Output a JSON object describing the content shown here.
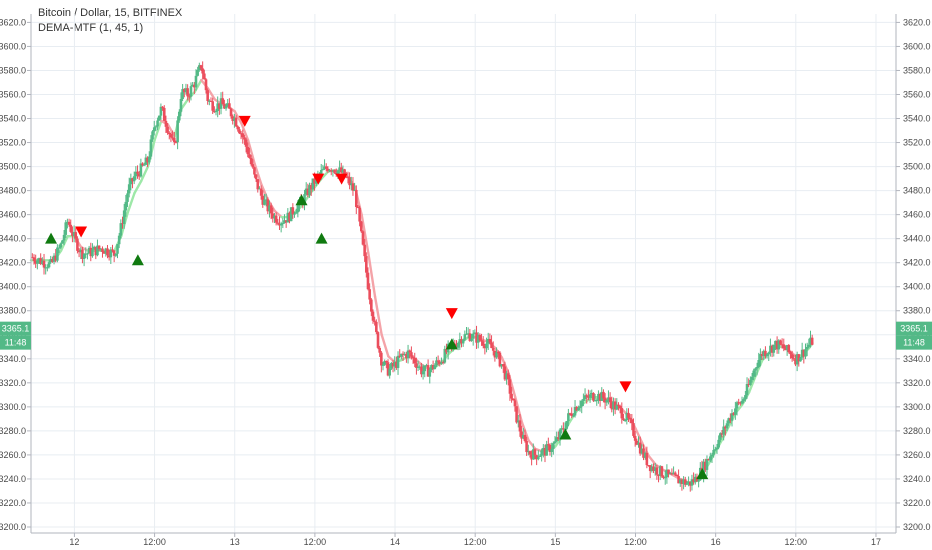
{
  "chart_data": {
    "type": "candlestick",
    "title": "Bitcoin / Dollar, 15, BITFINEX",
    "indicator": "DEMA-MTF (1, 45, 1)",
    "xlabel": "",
    "ylabel": "",
    "ylim": [
      3195,
      3627
    ],
    "y_ticks": [
      "3200.0",
      "3220.0",
      "3240.0",
      "3260.0",
      "3280.0",
      "3300.0",
      "3320.0",
      "3340.0",
      "3360.0",
      "3380.0",
      "3400.0",
      "3420.0",
      "3440.0",
      "3460.0",
      "3480.0",
      "3500.0",
      "3520.0",
      "3540.0",
      "3560.0",
      "3580.0",
      "3600.0",
      "3620.0"
    ],
    "x_ticks": [
      {
        "label": "12",
        "t": 2
      },
      {
        "label": "12:00",
        "t": 14
      },
      {
        "label": "13",
        "t": 26
      },
      {
        "label": "12:00",
        "t": 38
      },
      {
        "label": "14",
        "t": 50
      },
      {
        "label": "12:00",
        "t": 62
      },
      {
        "label": "15",
        "t": 74
      },
      {
        "label": "12:00",
        "t": 86
      },
      {
        "label": "16",
        "t": 98
      },
      {
        "label": "12:00",
        "t": 110
      },
      {
        "label": "17",
        "t": 122
      }
    ],
    "xlim": [
      -4.5,
      125
    ],
    "grid": true,
    "last_price": "3365.1",
    "last_value": 3365.1,
    "countdown": "11:48",
    "price_line": [
      [
        -4.5,
        3425
      ],
      [
        -1.5,
        3418
      ],
      [
        0,
        3435
      ],
      [
        1,
        3455
      ],
      [
        2,
        3440
      ],
      [
        3,
        3428
      ],
      [
        4,
        3428
      ],
      [
        5,
        3430
      ],
      [
        6,
        3432
      ],
      [
        7,
        3430
      ],
      [
        8,
        3427
      ],
      [
        9,
        3450
      ],
      [
        10,
        3480
      ],
      [
        11,
        3492
      ],
      [
        12,
        3498
      ],
      [
        13,
        3505
      ],
      [
        14,
        3535
      ],
      [
        15,
        3548
      ],
      [
        16,
        3532
      ],
      [
        17,
        3515
      ],
      [
        18,
        3562
      ],
      [
        19,
        3560
      ],
      [
        20,
        3570
      ],
      [
        21,
        3585
      ],
      [
        22,
        3555
      ],
      [
        23,
        3550
      ],
      [
        24,
        3552
      ],
      [
        25,
        3548
      ],
      [
        26,
        3540
      ],
      [
        27,
        3528
      ],
      [
        28,
        3512
      ],
      [
        29,
        3490
      ],
      [
        30,
        3475
      ],
      [
        31,
        3465
      ],
      [
        32,
        3458
      ],
      [
        33,
        3455
      ],
      [
        34,
        3458
      ],
      [
        35,
        3465
      ],
      [
        36,
        3470
      ],
      [
        37,
        3480
      ],
      [
        38,
        3488
      ],
      [
        39,
        3495
      ],
      [
        40,
        3500
      ],
      [
        41,
        3498
      ],
      [
        42,
        3495
      ],
      [
        43,
        3488
      ],
      [
        44,
        3478
      ],
      [
        45,
        3440
      ],
      [
        46,
        3400
      ],
      [
        47,
        3365
      ],
      [
        48,
        3338
      ],
      [
        49,
        3330
      ],
      [
        50,
        3335
      ],
      [
        51,
        3342
      ],
      [
        52,
        3345
      ],
      [
        53,
        3338
      ],
      [
        54,
        3330
      ],
      [
        55,
        3330
      ],
      [
        56,
        3335
      ],
      [
        57,
        3340
      ],
      [
        58,
        3348
      ],
      [
        59,
        3352
      ],
      [
        60,
        3358
      ],
      [
        61,
        3360
      ],
      [
        62,
        3358
      ],
      [
        63,
        3355
      ],
      [
        64,
        3352
      ],
      [
        65,
        3345
      ],
      [
        66,
        3335
      ],
      [
        67,
        3318
      ],
      [
        68,
        3295
      ],
      [
        69,
        3275
      ],
      [
        70,
        3262
      ],
      [
        71,
        3260
      ],
      [
        72,
        3262
      ],
      [
        73,
        3265
      ],
      [
        74,
        3270
      ],
      [
        75,
        3280
      ],
      [
        76,
        3292
      ],
      [
        77,
        3300
      ],
      [
        78,
        3305
      ],
      [
        79,
        3308
      ],
      [
        80,
        3310
      ],
      [
        81,
        3308
      ],
      [
        82,
        3305
      ],
      [
        83,
        3300
      ],
      [
        84,
        3295
      ],
      [
        85,
        3288
      ],
      [
        86,
        3275
      ],
      [
        87,
        3262
      ],
      [
        88,
        3252
      ],
      [
        89,
        3248
      ],
      [
        90,
        3245
      ],
      [
        91,
        3242
      ],
      [
        92,
        3240
      ],
      [
        93,
        3238
      ],
      [
        94,
        3236
      ],
      [
        95,
        3240
      ],
      [
        96,
        3248
      ],
      [
        97,
        3258
      ],
      [
        98,
        3268
      ],
      [
        99,
        3278
      ],
      [
        100,
        3290
      ],
      [
        101,
        3300
      ],
      [
        102,
        3305
      ],
      [
        103,
        3318
      ],
      [
        104,
        3335
      ],
      [
        105,
        3345
      ],
      [
        106,
        3348
      ],
      [
        107,
        3352
      ],
      [
        108,
        3350
      ],
      [
        109,
        3345
      ],
      [
        110,
        3340
      ],
      [
        111,
        3345
      ],
      [
        112,
        3352
      ],
      [
        112.5,
        3355
      ]
    ],
    "series": [
      {
        "name": "DEMA-MTF",
        "values": [
          [
            -4.5,
            3422
          ],
          [
            -1,
            3422
          ],
          [
            0,
            3430
          ],
          [
            1,
            3442
          ],
          [
            2,
            3442
          ],
          [
            3,
            3433
          ],
          [
            4,
            3430
          ],
          [
            5,
            3430
          ],
          [
            6,
            3430
          ],
          [
            7,
            3430
          ],
          [
            8,
            3430
          ],
          [
            9,
            3442
          ],
          [
            10,
            3462
          ],
          [
            11,
            3478
          ],
          [
            12,
            3488
          ],
          [
            13,
            3500
          ],
          [
            14,
            3522
          ],
          [
            15,
            3538
          ],
          [
            16,
            3535
          ],
          [
            17,
            3525
          ],
          [
            18,
            3548
          ],
          [
            19,
            3556
          ],
          [
            20,
            3562
          ],
          [
            21,
            3572
          ],
          [
            22,
            3565
          ],
          [
            23,
            3556
          ],
          [
            24,
            3552
          ],
          [
            25,
            3550
          ],
          [
            26,
            3546
          ],
          [
            27,
            3536
          ],
          [
            28,
            3522
          ],
          [
            29,
            3502
          ],
          [
            30,
            3485
          ],
          [
            31,
            3472
          ],
          [
            32,
            3463
          ],
          [
            33,
            3458
          ],
          [
            34,
            3458
          ],
          [
            35,
            3462
          ],
          [
            36,
            3467
          ],
          [
            37,
            3475
          ],
          [
            38,
            3483
          ],
          [
            39,
            3490
          ],
          [
            40,
            3496
          ],
          [
            41,
            3497
          ],
          [
            42,
            3496
          ],
          [
            43,
            3491
          ],
          [
            44,
            3483
          ],
          [
            45,
            3460
          ],
          [
            46,
            3428
          ],
          [
            47,
            3392
          ],
          [
            48,
            3360
          ],
          [
            49,
            3342
          ],
          [
            50,
            3337
          ],
          [
            51,
            3339
          ],
          [
            52,
            3342
          ],
          [
            53,
            3340
          ],
          [
            54,
            3335
          ],
          [
            55,
            3332
          ],
          [
            56,
            3333
          ],
          [
            57,
            3337
          ],
          [
            58,
            3344
          ],
          [
            59,
            3349
          ],
          [
            60,
            3354
          ],
          [
            61,
            3358
          ],
          [
            62,
            3358
          ],
          [
            63,
            3356
          ],
          [
            64,
            3354
          ],
          [
            65,
            3349
          ],
          [
            66,
            3341
          ],
          [
            67,
            3328
          ],
          [
            68,
            3308
          ],
          [
            69,
            3287
          ],
          [
            70,
            3272
          ],
          [
            71,
            3265
          ],
          [
            72,
            3263
          ],
          [
            73,
            3264
          ],
          [
            74,
            3267
          ],
          [
            75,
            3275
          ],
          [
            76,
            3286
          ],
          [
            77,
            3295
          ],
          [
            78,
            3302
          ],
          [
            79,
            3306
          ],
          [
            80,
            3308
          ],
          [
            81,
            3308
          ],
          [
            82,
            3306
          ],
          [
            83,
            3302
          ],
          [
            84,
            3298
          ],
          [
            85,
            3292
          ],
          [
            86,
            3282
          ],
          [
            87,
            3270
          ],
          [
            88,
            3259
          ],
          [
            89,
            3252
          ],
          [
            90,
            3248
          ],
          [
            91,
            3245
          ],
          [
            92,
            3242
          ],
          [
            93,
            3239
          ],
          [
            94,
            3237
          ],
          [
            95,
            3238
          ],
          [
            96,
            3244
          ],
          [
            97,
            3253
          ],
          [
            98,
            3263
          ],
          [
            99,
            3273
          ],
          [
            100,
            3284
          ],
          [
            101,
            3295
          ],
          [
            102,
            3302
          ],
          [
            103,
            3312
          ],
          [
            104,
            3326
          ],
          [
            105,
            3339
          ],
          [
            106,
            3345
          ],
          [
            107,
            3350
          ],
          [
            108,
            3350
          ],
          [
            109,
            3347
          ],
          [
            110,
            3342
          ],
          [
            111,
            3343
          ],
          [
            112,
            3349
          ],
          [
            112.5,
            3353
          ]
        ]
      }
    ],
    "signals": [
      {
        "t": -1.5,
        "y": 3440,
        "type": "up"
      },
      {
        "t": 3,
        "y": 3446,
        "type": "down"
      },
      {
        "t": 11.5,
        "y": 3422,
        "type": "up"
      },
      {
        "t": 27.5,
        "y": 3538,
        "type": "down"
      },
      {
        "t": 36,
        "y": 3472,
        "type": "up"
      },
      {
        "t": 38.5,
        "y": 3490,
        "type": "down"
      },
      {
        "t": 39,
        "y": 3440,
        "type": "up"
      },
      {
        "t": 42,
        "y": 3490,
        "type": "down"
      },
      {
        "t": 58.5,
        "y": 3352,
        "type": "up"
      },
      {
        "t": 58.5,
        "y": 3378,
        "type": "down"
      },
      {
        "t": 75.5,
        "y": 3277,
        "type": "up"
      },
      {
        "t": 84.5,
        "y": 3317,
        "type": "down"
      },
      {
        "t": 96,
        "y": 3244,
        "type": "up"
      }
    ]
  },
  "colors": {
    "bull": "#53b987",
    "bear": "#eb4d5c",
    "dema_up": "#9de8a8",
    "dema_down": "#f4a3a8",
    "grid": "#e8edf2",
    "axis_text": "#4a4a4a",
    "up_arrow": "#107a10",
    "down_arrow": "#ff0000",
    "price_tag": "#53b987"
  }
}
